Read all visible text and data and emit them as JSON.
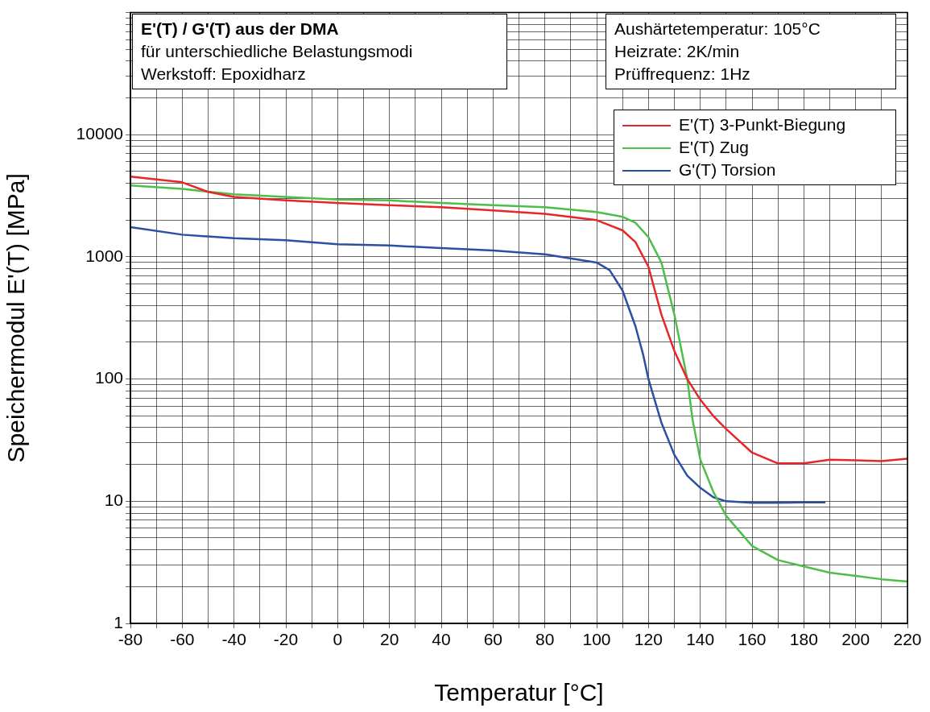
{
  "chart_data": {
    "type": "line",
    "title": "E'(T) / G'(T) aus der DMA",
    "subtitle": "für unterschiedliche Belastungsmodi",
    "xlabel": "Temperatur [°C]",
    "ylabel": "Speichermodul E'(T) [MPa]",
    "annotations": [
      "Werkstoff: Epoxidharz",
      "Aushärtetemperatur: 105°C",
      "Heizrate: 2K/min",
      "Prüffrequenz: 1Hz"
    ],
    "log": "y",
    "grid": true,
    "legend": "top right",
    "marker": "none",
    "line_style": "solid",
    "xlim": [
      -80,
      220
    ],
    "xticks": [
      -80,
      {
        "value": -70,
        "label": null
      },
      -60,
      {
        "value": -50,
        "label": null
      },
      -40,
      {
        "value": -30,
        "label": null
      },
      -20,
      {
        "value": -10,
        "label": null
      },
      0,
      {
        "value": 10,
        "label": null
      },
      20,
      {
        "value": 30,
        "label": null
      },
      40,
      {
        "value": 50,
        "label": null
      },
      60,
      {
        "value": 70,
        "label": null
      },
      80,
      {
        "value": 90,
        "label": null
      },
      100,
      {
        "value": 110,
        "label": null
      },
      120,
      {
        "value": 130,
        "label": null
      },
      140,
      {
        "value": 150,
        "label": null
      },
      160,
      {
        "value": 170,
        "label": null
      },
      180,
      {
        "value": 190,
        "label": null
      },
      200,
      {
        "value": 210,
        "label": null
      },
      220
    ],
    "ylim": [
      1,
      100000
    ],
    "yticks": [
      1,
      {
        "value": 2,
        "label": null
      },
      {
        "value": 3,
        "label": null
      },
      {
        "value": 4,
        "label": null
      },
      {
        "value": 5,
        "label": null
      },
      {
        "value": 6,
        "label": null
      },
      {
        "value": 7,
        "label": null
      },
      {
        "value": 8,
        "label": null
      },
      {
        "value": 9,
        "label": null
      },
      10,
      {
        "value": 20,
        "label": null
      },
      {
        "value": 30,
        "label": null
      },
      {
        "value": 40,
        "label": null
      },
      {
        "value": 50,
        "label": null
      },
      {
        "value": 60,
        "label": null
      },
      {
        "value": 70,
        "label": null
      },
      {
        "value": 80,
        "label": null
      },
      {
        "value": 90,
        "label": null
      },
      100,
      {
        "value": 200,
        "label": null
      },
      {
        "value": 300,
        "label": null
      },
      {
        "value": 400,
        "label": null
      },
      {
        "value": 500,
        "label": null
      },
      {
        "value": 600,
        "label": null
      },
      {
        "value": 700,
        "label": null
      },
      {
        "value": 800,
        "label": null
      },
      {
        "value": 900,
        "label": null
      },
      1000,
      {
        "value": 2000,
        "label": null
      },
      {
        "value": 3000,
        "label": null
      },
      {
        "value": 4000,
        "label": null
      },
      {
        "value": 5000,
        "label": null
      },
      {
        "value": 6000,
        "label": null
      },
      {
        "value": 7000,
        "label": null
      },
      {
        "value": 8000,
        "label": null
      },
      {
        "value": 9000,
        "label": null
      },
      10000,
      {
        "value": 20000,
        "label": null
      },
      {
        "value": 30000,
        "label": null
      },
      {
        "value": 40000,
        "label": null
      },
      {
        "value": 50000,
        "label": null
      },
      {
        "value": 60000,
        "label": null
      },
      {
        "value": 70000,
        "label": null
      },
      {
        "value": 80000,
        "label": null
      },
      {
        "value": 90000,
        "label": null
      },
      {
        "value": 100000,
        "label": null
      }
    ],
    "series": [
      {
        "name": "E'(T) 3-Punkt-Biegung",
        "color": "#e8262a",
        "x": [
          -80,
          -60,
          -50,
          -40,
          -20,
          0,
          20,
          40,
          60,
          80,
          100,
          110,
          115,
          120,
          125,
          130,
          135,
          140,
          145,
          150,
          160,
          170,
          180,
          190,
          200,
          210,
          220
        ],
        "values": [
          4550,
          4080,
          3400,
          3100,
          2900,
          2760,
          2650,
          2550,
          2400,
          2250,
          2000,
          1650,
          1320,
          830,
          337,
          170,
          100,
          68,
          50,
          39,
          25,
          20.4,
          20.4,
          21.9,
          21.6,
          21.3,
          22.3
        ]
      },
      {
        "name": "E'(T) Zug",
        "color": "#4dbf48",
        "x": [
          -80,
          -60,
          -40,
          -20,
          0,
          20,
          40,
          60,
          80,
          100,
          110,
          115,
          120,
          125,
          130,
          135,
          137,
          140,
          145,
          150,
          160,
          170,
          180,
          190,
          200,
          210,
          220
        ],
        "values": [
          3850,
          3600,
          3250,
          3100,
          2950,
          2900,
          2760,
          2650,
          2550,
          2330,
          2130,
          1900,
          1450,
          900,
          337,
          100,
          47,
          22,
          12,
          7.6,
          4.3,
          3.3,
          2.93,
          2.6,
          2.45,
          2.3,
          2.2
        ]
      },
      {
        "name": "G'(T) Torsion",
        "color": "#2b4fa3",
        "x": [
          -80,
          -60,
          -40,
          -20,
          0,
          20,
          40,
          60,
          80,
          100,
          105,
          110,
          115,
          118,
          120,
          125,
          130,
          135,
          140,
          145,
          150,
          160,
          170,
          180,
          188
        ],
        "values": [
          1750,
          1520,
          1420,
          1370,
          1270,
          1240,
          1180,
          1130,
          1050,
          900,
          780,
          530,
          270,
          157,
          100,
          44,
          24,
          16.2,
          12.9,
          10.8,
          10,
          9.7,
          9.7,
          9.8,
          9.8
        ]
      }
    ]
  }
}
